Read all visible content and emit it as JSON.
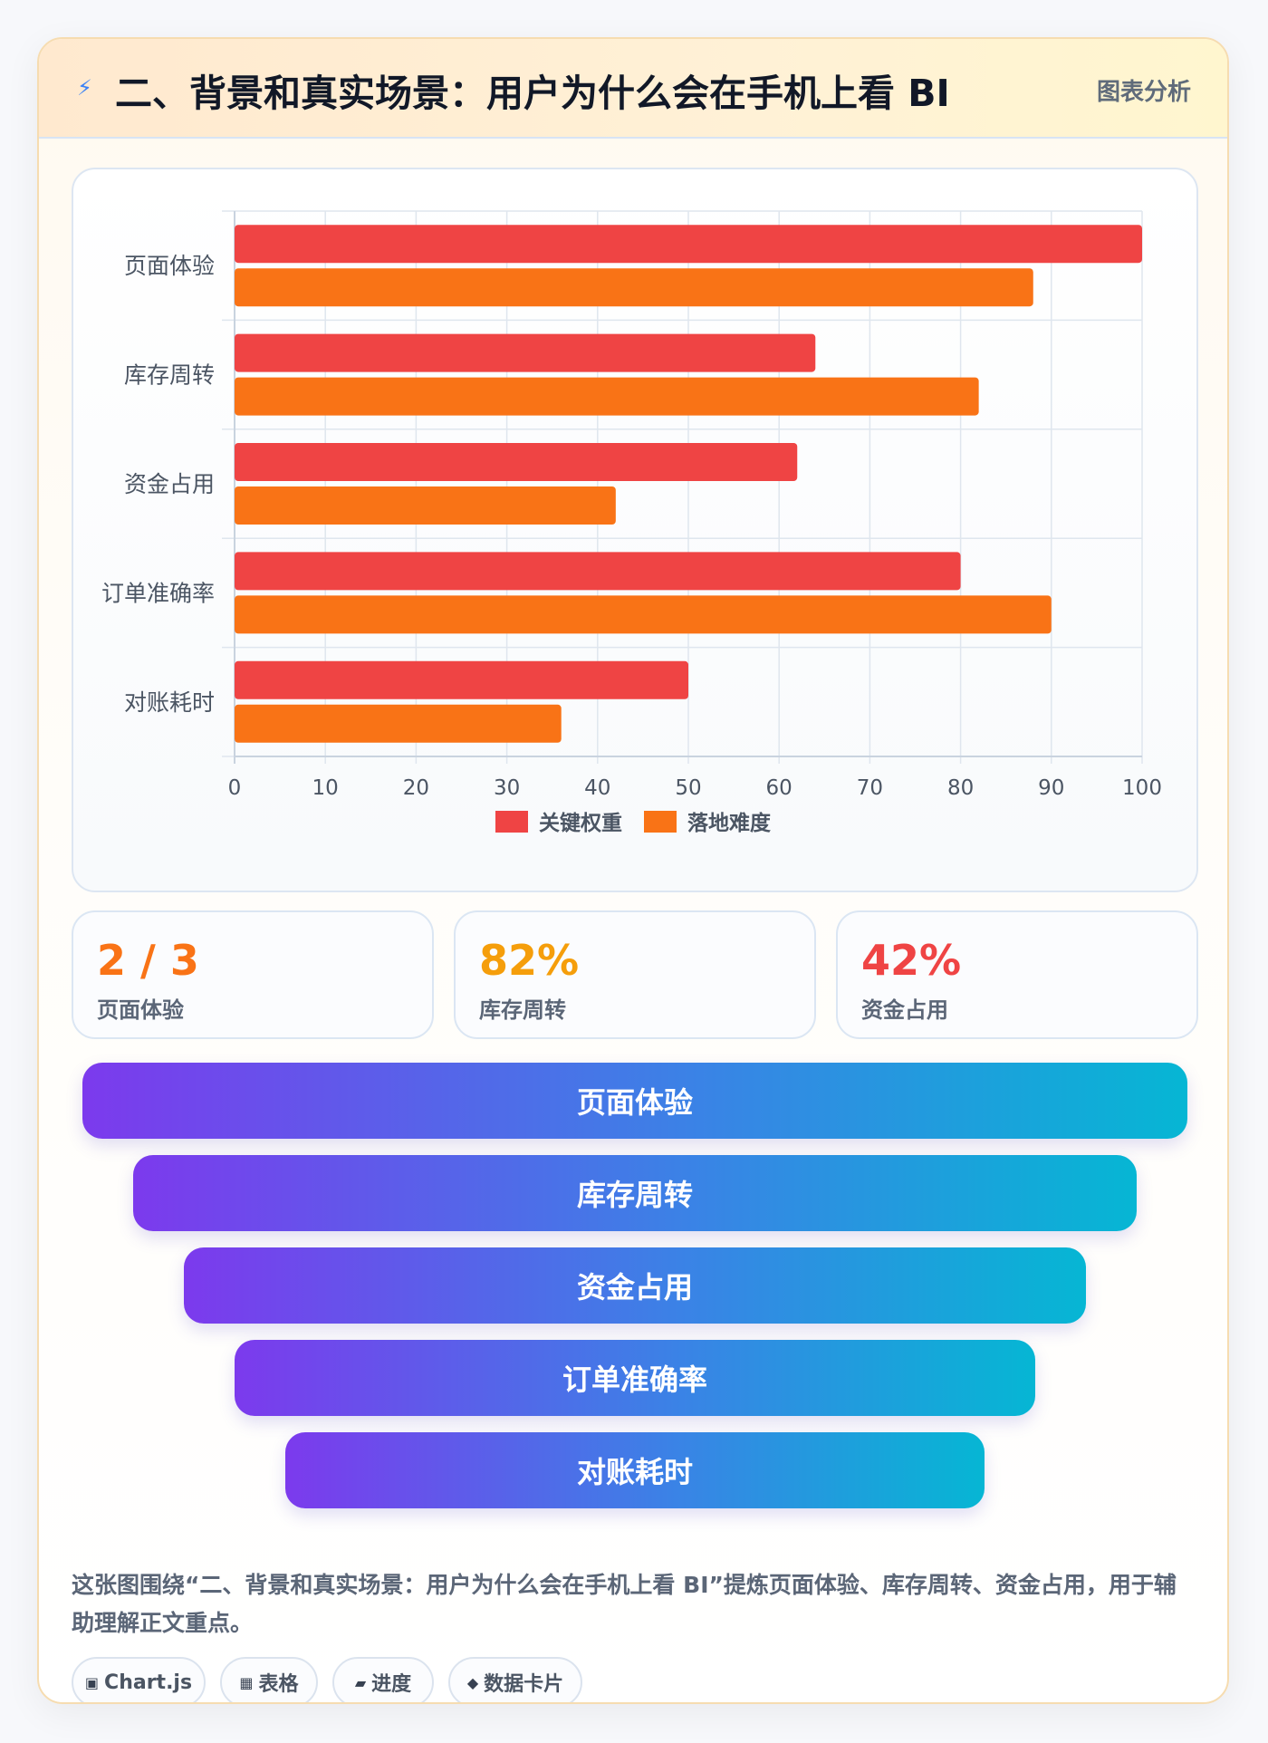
{
  "header": {
    "title": "二、背景和真实场景：用户为什么会在手机上看 BI",
    "tag": "图表分析"
  },
  "chart_data": {
    "type": "bar",
    "orientation": "horizontal",
    "categories": [
      "页面体验",
      "库存周转",
      "资金占用",
      "订单准确率",
      "对账耗时"
    ],
    "series": [
      {
        "name": "关键权重",
        "color": "#ef4444",
        "values": [
          100,
          64,
          62,
          80,
          50
        ]
      },
      {
        "name": "落地难度",
        "color": "#f97316",
        "values": [
          88,
          82,
          42,
          90,
          36
        ]
      }
    ],
    "xlim": [
      0,
      100
    ],
    "xticks": [
      0,
      10,
      20,
      30,
      40,
      50,
      60,
      70,
      80,
      90,
      100
    ],
    "grid": true,
    "legend_position": "bottom"
  },
  "stats": [
    {
      "value": "2 / 3",
      "label": "页面体验",
      "color": "#f97316"
    },
    {
      "value": "82%",
      "label": "库存周转",
      "color": "#f59e0b"
    },
    {
      "value": "42%",
      "label": "资金占用",
      "color": "#ef4444"
    }
  ],
  "funnel": [
    "页面体验",
    "库存周转",
    "资金占用",
    "订单准确率",
    "对账耗时"
  ],
  "description": "这张图围绕“二、背景和真实场景：用户为什么会在手机上看 BI”提炼页面体验、库存周转、资金占用，用于辅助理解正文重点。",
  "chips": [
    {
      "icon": "▣",
      "icon_name": "chart-icon",
      "label": "Chart.js"
    },
    {
      "icon": "▦",
      "icon_name": "table-icon",
      "label": "表格"
    },
    {
      "icon": "▰",
      "icon_name": "progress-icon",
      "label": "进度"
    },
    {
      "icon": "◆",
      "icon_name": "data-card-icon",
      "label": "数据卡片"
    }
  ]
}
